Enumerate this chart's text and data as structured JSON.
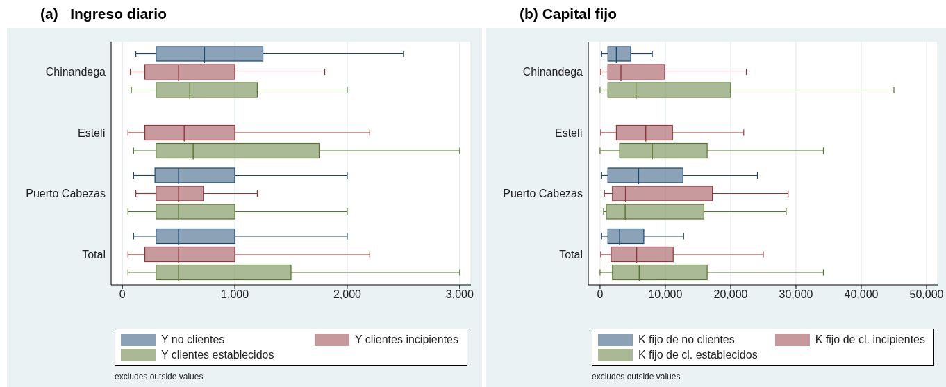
{
  "chart_data": [
    {
      "type": "box",
      "orientation": "horizontal",
      "title": "(a)   Ingreso diario",
      "categories": [
        "Chinandega",
        "Estelí",
        "Puerto Cabezas",
        "Total"
      ],
      "series": [
        {
          "name": "Y no clientes",
          "color": "#1a476f",
          "boxes": [
            {
              "low": 120,
              "q1": 300,
              "median": 730,
              "q3": 1250,
              "high": 2500
            },
            null,
            {
              "low": 100,
              "q1": 290,
              "median": 500,
              "q3": 1000,
              "high": 2000
            },
            {
              "low": 100,
              "q1": 300,
              "median": 500,
              "q3": 1000,
              "high": 2000
            }
          ]
        },
        {
          "name": "Y clientes incipientes",
          "color": "#90353b",
          "boxes": [
            {
              "low": 70,
              "q1": 200,
              "median": 500,
              "q3": 1000,
              "high": 1800
            },
            {
              "low": 50,
              "q1": 200,
              "median": 550,
              "q3": 1000,
              "high": 2200
            },
            {
              "low": 120,
              "q1": 300,
              "median": 500,
              "q3": 720,
              "high": 1200
            },
            {
              "low": 50,
              "q1": 200,
              "median": 500,
              "q3": 1000,
              "high": 2200
            }
          ]
        },
        {
          "name": "Y clientes establecidos",
          "color": "#55752f",
          "boxes": [
            {
              "low": 80,
              "q1": 300,
              "median": 600,
              "q3": 1200,
              "high": 2000
            },
            {
              "low": 100,
              "q1": 300,
              "median": 630,
              "q3": 1750,
              "high": 3000
            },
            {
              "low": 50,
              "q1": 300,
              "median": 500,
              "q3": 1000,
              "high": 2000
            },
            {
              "low": 50,
              "q1": 300,
              "median": 500,
              "q3": 1500,
              "high": 3000
            }
          ]
        }
      ],
      "xlim": [
        -100,
        3100
      ],
      "xticks": [
        0,
        {
          "value": 1000,
          "label": "1,000"
        },
        {
          "value": 2000,
          "label": "2,000"
        },
        {
          "value": 3000,
          "label": "3,000"
        }
      ],
      "grid": "x",
      "legend": "bottom",
      "annotations": [
        "excludes outside values"
      ]
    },
    {
      "type": "box",
      "orientation": "horizontal",
      "title": "(b) Capital fijo",
      "categories": [
        "Chinandega",
        "Estelí",
        "Puerto Cabezas",
        "Total"
      ],
      "series": [
        {
          "name": "K fijo de no clientes",
          "color": "#1a476f",
          "boxes": [
            {
              "low": 250,
              "q1": 1200,
              "median": 2500,
              "q3": 4700,
              "high": 8000
            },
            null,
            {
              "low": 250,
              "q1": 1200,
              "median": 5900,
              "q3": 12700,
              "high": 24100
            },
            {
              "low": 250,
              "q1": 1200,
              "median": 3000,
              "q3": 6700,
              "high": 12800
            }
          ]
        },
        {
          "name": "K fijo de cl. incipientes",
          "color": "#90353b",
          "boxes": [
            {
              "low": 100,
              "q1": 1200,
              "median": 3200,
              "q3": 9900,
              "high": 22400
            },
            {
              "low": 100,
              "q1": 2500,
              "median": 7000,
              "q3": 11100,
              "high": 22000
            },
            {
              "low": 670,
              "q1": 1900,
              "median": 3900,
              "q3": 17200,
              "high": 28800
            },
            {
              "low": 100,
              "q1": 1700,
              "median": 5600,
              "q3": 11200,
              "high": 25000
            }
          ]
        },
        {
          "name": "K fijo de cl. establecidos",
          "color": "#55752f",
          "boxes": [
            {
              "low": 0,
              "q1": 1200,
              "median": 5500,
              "q3": 20000,
              "high": 45000
            },
            {
              "low": 0,
              "q1": 3000,
              "median": 8000,
              "q3": 16400,
              "high": 34200
            },
            {
              "low": 530,
              "q1": 950,
              "median": 3850,
              "q3": 15900,
              "high": 28500
            },
            {
              "low": 0,
              "q1": 1900,
              "median": 6000,
              "q3": 16400,
              "high": 34200
            }
          ]
        }
      ],
      "xlim": [
        -1800,
        51700
      ],
      "xticks": [
        0,
        {
          "value": 10000,
          "label": "10,000"
        },
        {
          "value": 20000,
          "label": "20,000"
        },
        {
          "value": 30000,
          "label": "30,000"
        },
        {
          "value": 40000,
          "label": "40,000"
        },
        {
          "value": 50000,
          "label": "50,000"
        }
      ],
      "grid": "x",
      "legend": "bottom",
      "annotations": [
        "excludes outside values"
      ]
    }
  ]
}
